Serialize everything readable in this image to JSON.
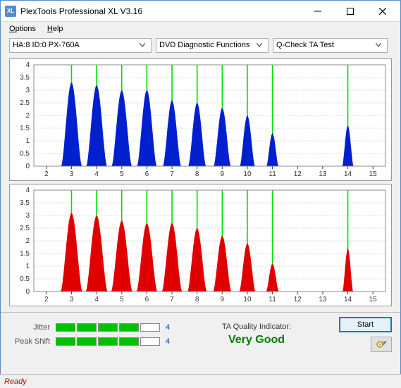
{
  "window": {
    "title": "PlexTools Professional XL V3.16",
    "icon_text": "XL"
  },
  "menu": {
    "options": "Options",
    "help": "Help"
  },
  "toolbar": {
    "drive": "HA:8 ID:0   PX-760A",
    "function": "DVD Diagnostic Functions",
    "test": "Q-Check TA Test"
  },
  "charts": {
    "ylim": [
      0,
      4
    ],
    "yticks": [
      0,
      0.5,
      1,
      1.5,
      2,
      2.5,
      3,
      3.5,
      4
    ],
    "xlim": [
      1.5,
      15.5
    ],
    "xticks": [
      2,
      3,
      4,
      5,
      6,
      7,
      8,
      9,
      10,
      11,
      12,
      13,
      14,
      15
    ],
    "vlines": [
      3,
      4,
      5,
      6,
      7,
      8,
      9,
      10,
      11,
      14
    ],
    "vline_color": "#00e000",
    "grid_color": "#b0b0b0",
    "axis_color": "#000000",
    "top": {
      "fill": "#0020d0",
      "peaks": [
        {
          "c": 3,
          "h": 3.3,
          "w": 0.82
        },
        {
          "c": 4,
          "h": 3.2,
          "w": 0.82
        },
        {
          "c": 5,
          "h": 3.0,
          "w": 0.8
        },
        {
          "c": 6,
          "h": 3.0,
          "w": 0.78
        },
        {
          "c": 7,
          "h": 2.6,
          "w": 0.72
        },
        {
          "c": 8,
          "h": 2.5,
          "w": 0.7
        },
        {
          "c": 9,
          "h": 2.3,
          "w": 0.68
        },
        {
          "c": 10,
          "h": 2.0,
          "w": 0.6
        },
        {
          "c": 11,
          "h": 1.3,
          "w": 0.48
        },
        {
          "c": 14,
          "h": 1.6,
          "w": 0.45
        }
      ]
    },
    "bottom": {
      "fill": "#e00000",
      "peaks": [
        {
          "c": 3,
          "h": 3.1,
          "w": 0.86
        },
        {
          "c": 4,
          "h": 3.0,
          "w": 0.86
        },
        {
          "c": 5,
          "h": 2.8,
          "w": 0.84
        },
        {
          "c": 6,
          "h": 2.7,
          "w": 0.82
        },
        {
          "c": 7,
          "h": 2.7,
          "w": 0.8
        },
        {
          "c": 8,
          "h": 2.5,
          "w": 0.76
        },
        {
          "c": 9,
          "h": 2.2,
          "w": 0.72
        },
        {
          "c": 10,
          "h": 1.9,
          "w": 0.64
        },
        {
          "c": 11,
          "h": 1.1,
          "w": 0.5
        },
        {
          "c": 14,
          "h": 1.7,
          "w": 0.42
        }
      ]
    }
  },
  "metrics": {
    "jitter": {
      "label": "Jitter",
      "filled": 4,
      "total": 5,
      "value": "4"
    },
    "peakshift": {
      "label": "Peak Shift",
      "filled": 4,
      "total": 5,
      "value": "4"
    },
    "quality_label": "TA Quality Indicator:",
    "quality_value": "Very Good"
  },
  "buttons": {
    "start": "Start"
  },
  "status": {
    "text": "Ready"
  }
}
